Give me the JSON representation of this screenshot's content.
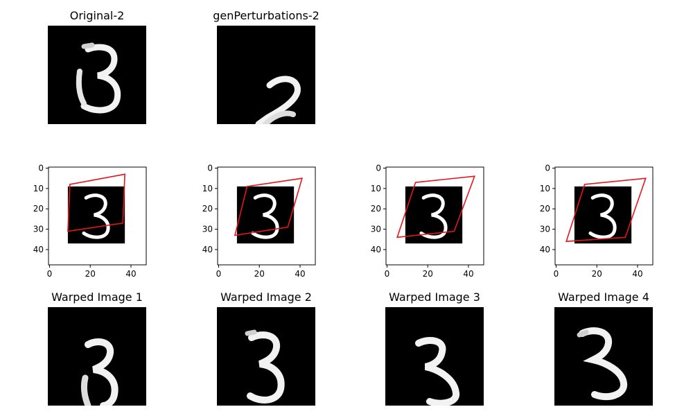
{
  "row1": {
    "original_title": "Original-2",
    "perturb_title": "genPerturbations-2"
  },
  "warped_titles": [
    "Warped Image 1",
    "Warped Image 2",
    "Warped Image 3",
    "Warped Image 4"
  ],
  "colors": {
    "quad": "#e8141b",
    "bg": "#000000",
    "digit": "#ffffff"
  },
  "chart_data": {
    "type": "scatter",
    "description_free": true,
    "plots": [
      {
        "x_ticks": [
          0,
          20,
          40
        ],
        "y_ticks": [
          0,
          10,
          20,
          30,
          40
        ],
        "xlim": [
          -0.5,
          47.5
        ],
        "ylim": [
          47.5,
          -0.5
        ],
        "image_extent": [
          9,
          37,
          9,
          37
        ],
        "quad": [
          [
            10,
            8
          ],
          [
            37,
            3
          ],
          [
            36,
            27
          ],
          [
            9,
            31
          ]
        ]
      },
      {
        "x_ticks": [
          0,
          20,
          40
        ],
        "y_ticks": [
          0,
          10,
          20,
          30,
          40
        ],
        "xlim": [
          -0.5,
          47.5
        ],
        "ylim": [
          47.5,
          -0.5
        ],
        "image_extent": [
          9,
          37,
          9,
          37
        ],
        "quad": [
          [
            14,
            9
          ],
          [
            41,
            5
          ],
          [
            34,
            29
          ],
          [
            8,
            33
          ]
        ]
      },
      {
        "x_ticks": [
          0,
          20,
          40
        ],
        "y_ticks": [
          0,
          10,
          20,
          30,
          40
        ],
        "xlim": [
          -0.5,
          47.5
        ],
        "ylim": [
          47.5,
          -0.5
        ],
        "image_extent": [
          9,
          37,
          9,
          37
        ],
        "quad": [
          [
            14,
            7
          ],
          [
            43,
            4
          ],
          [
            33,
            31
          ],
          [
            5,
            34
          ]
        ]
      },
      {
        "x_ticks": [
          0,
          20,
          40
        ],
        "y_ticks": [
          0,
          10,
          20,
          30,
          40
        ],
        "xlim": [
          -0.5,
          47.5
        ],
        "ylim": [
          47.5,
          -0.5
        ],
        "image_extent": [
          9,
          37,
          9,
          37
        ],
        "quad": [
          [
            14,
            8
          ],
          [
            44,
            5
          ],
          [
            34,
            34
          ],
          [
            5,
            36
          ]
        ]
      }
    ]
  }
}
